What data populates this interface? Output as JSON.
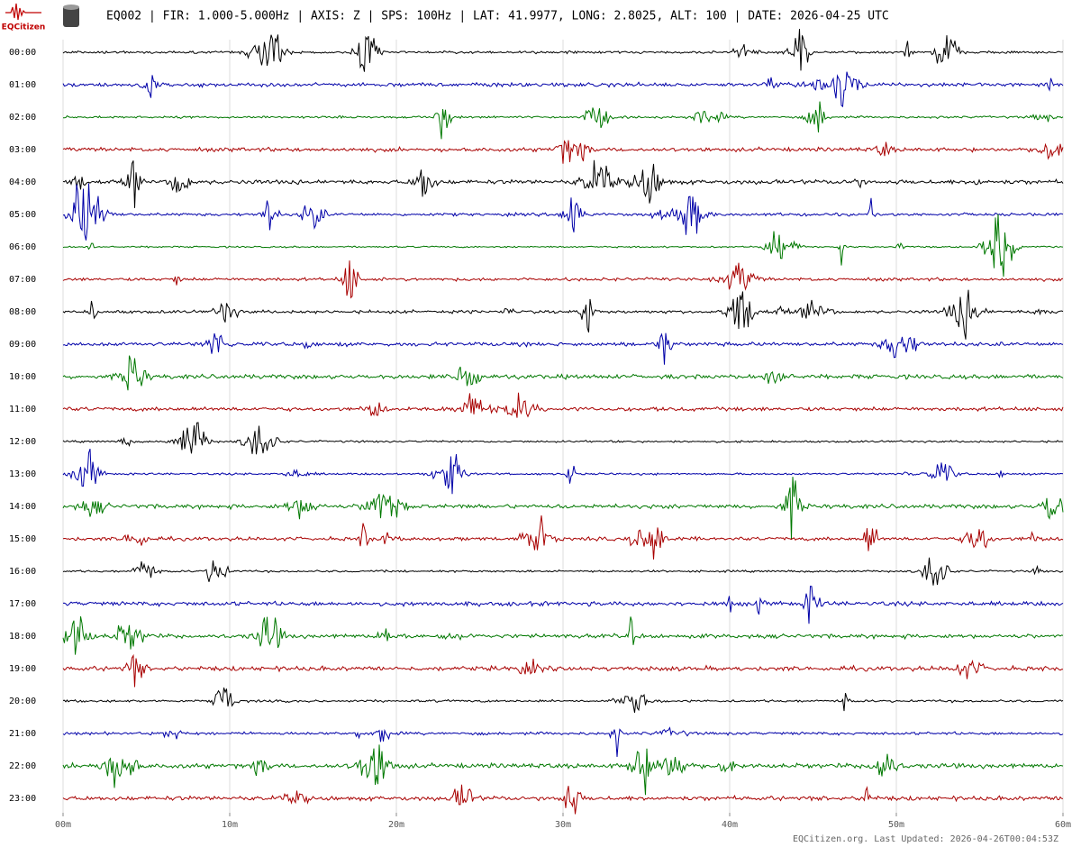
{
  "chart_data": {
    "type": "helicorder",
    "logo_text": "EQCitizen",
    "title": "EQ002 | FIR: 1.000-5.000Hz | AXIS: Z | SPS: 100Hz | LAT: 41.9977, LONG: 2.8025, ALT: 100 | DATE: 2026-04-25 UTC",
    "row_labels": [
      "00:00",
      "01:00",
      "02:00",
      "03:00",
      "04:00",
      "05:00",
      "06:00",
      "07:00",
      "08:00",
      "09:00",
      "10:00",
      "11:00",
      "12:00",
      "13:00",
      "14:00",
      "15:00",
      "16:00",
      "17:00",
      "18:00",
      "19:00",
      "20:00",
      "21:00",
      "22:00",
      "23:00"
    ],
    "trace_colors": [
      "#000000",
      "#0000a8",
      "#007800",
      "#a80000"
    ],
    "xlim": [
      0,
      60
    ],
    "xticks": [
      {
        "value": 0,
        "label": "00m"
      },
      {
        "value": 10,
        "label": "10m"
      },
      {
        "value": 20,
        "label": "20m"
      },
      {
        "value": 30,
        "label": "30m"
      },
      {
        "value": 40,
        "label": "40m"
      },
      {
        "value": 50,
        "label": "50m"
      },
      {
        "value": 60,
        "label": "60m"
      }
    ],
    "grid": true,
    "footer": "EQCitizen.org. Last Updated: 2026-04-26T00:04:53Z"
  }
}
